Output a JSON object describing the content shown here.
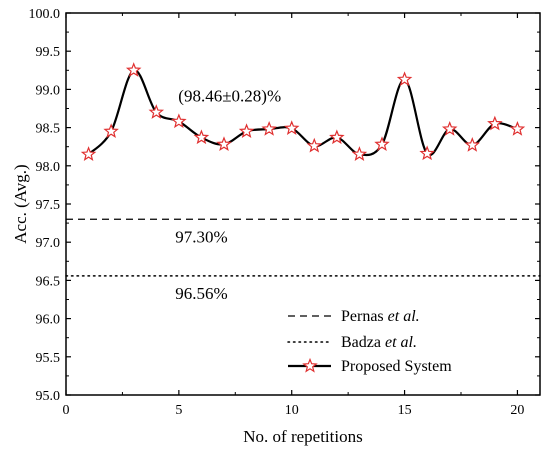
{
  "chart_data": {
    "type": "line",
    "xlabel": "No. of repetitions",
    "ylabel": "Acc. (Avg.)",
    "xlim": [
      0,
      21
    ],
    "ylim": [
      95.0,
      100.0
    ],
    "x_ticks": [
      0,
      5,
      10,
      15,
      20
    ],
    "y_ticks": [
      95.0,
      95.5,
      96.0,
      96.5,
      97.0,
      97.5,
      98.0,
      98.5,
      99.0,
      99.5,
      100.0
    ],
    "grid": false,
    "legend_position": "bottom-right",
    "series": [
      {
        "name": "Proposed System",
        "style": "solid-smooth",
        "marker": "star",
        "marker_color": "#e03030",
        "x": [
          1,
          2,
          3,
          4,
          5,
          6,
          7,
          8,
          9,
          10,
          11,
          12,
          13,
          14,
          15,
          16,
          17,
          18,
          19,
          20
        ],
        "y": [
          98.15,
          98.45,
          99.25,
          98.7,
          98.58,
          98.37,
          98.28,
          98.45,
          98.48,
          98.49,
          98.26,
          98.37,
          98.15,
          98.28,
          99.13,
          98.16,
          98.48,
          98.27,
          98.55,
          98.48
        ]
      },
      {
        "name": "Pernas et al.",
        "name_main": "Pernas ",
        "name_italic": "et al.",
        "style": "dashed",
        "y": 97.3
      },
      {
        "name": "Badza et al.",
        "name_main": "Badza ",
        "name_italic": "et al.",
        "style": "dotted",
        "y": 96.56
      }
    ],
    "annotations": {
      "mean": "(98.46±0.28)%",
      "pernas": "97.30%",
      "badza": "96.56%"
    }
  }
}
